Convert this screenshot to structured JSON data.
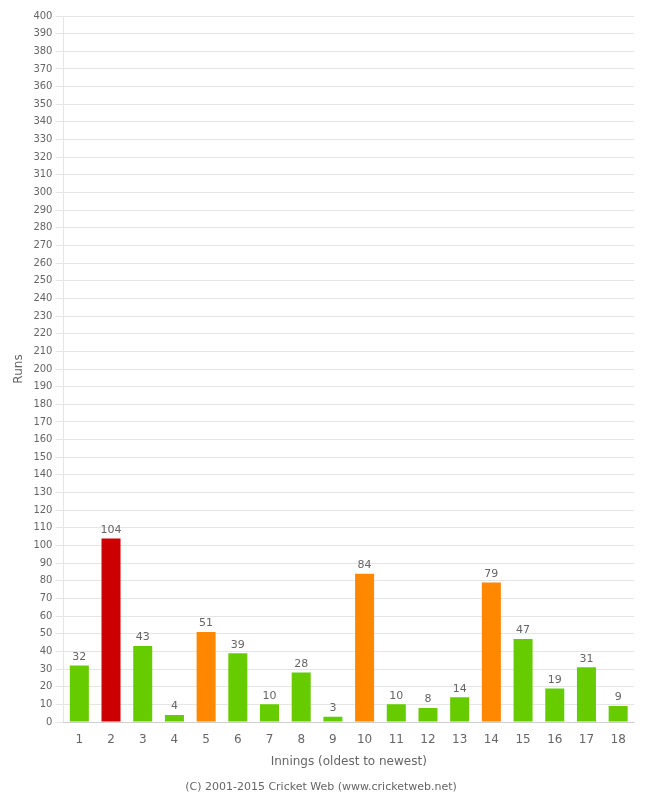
{
  "chart_data": {
    "type": "bar",
    "xlabel": "Innings (oldest to newest)",
    "ylabel": "Runs",
    "categories": [
      1,
      2,
      3,
      4,
      5,
      6,
      7,
      8,
      9,
      10,
      11,
      12,
      13,
      14,
      15,
      16,
      17,
      18
    ],
    "values": [
      32,
      104,
      43,
      4,
      51,
      39,
      10,
      28,
      3,
      84,
      10,
      8,
      14,
      79,
      47,
      19,
      31,
      9
    ],
    "colors": [
      "#66cc00",
      "#cc0000",
      "#66cc00",
      "#66cc00",
      "#ff8800",
      "#66cc00",
      "#66cc00",
      "#66cc00",
      "#66cc00",
      "#ff8800",
      "#66cc00",
      "#66cc00",
      "#66cc00",
      "#ff8800",
      "#66cc00",
      "#66cc00",
      "#66cc00",
      "#66cc00"
    ],
    "ylim": [
      0,
      400
    ],
    "yticks": [
      0,
      10,
      20,
      30,
      40,
      50,
      60,
      70,
      80,
      90,
      100,
      110,
      120,
      130,
      140,
      150,
      160,
      170,
      180,
      190,
      200,
      210,
      220,
      230,
      240,
      250,
      260,
      270,
      280,
      290,
      300,
      310,
      320,
      330,
      340,
      350,
      360,
      370,
      380,
      390,
      400
    ],
    "grid": true,
    "data_labels": true,
    "annotations": [
      "(C) 2001-2015 Cricket Web (www.cricketweb.net)"
    ]
  }
}
